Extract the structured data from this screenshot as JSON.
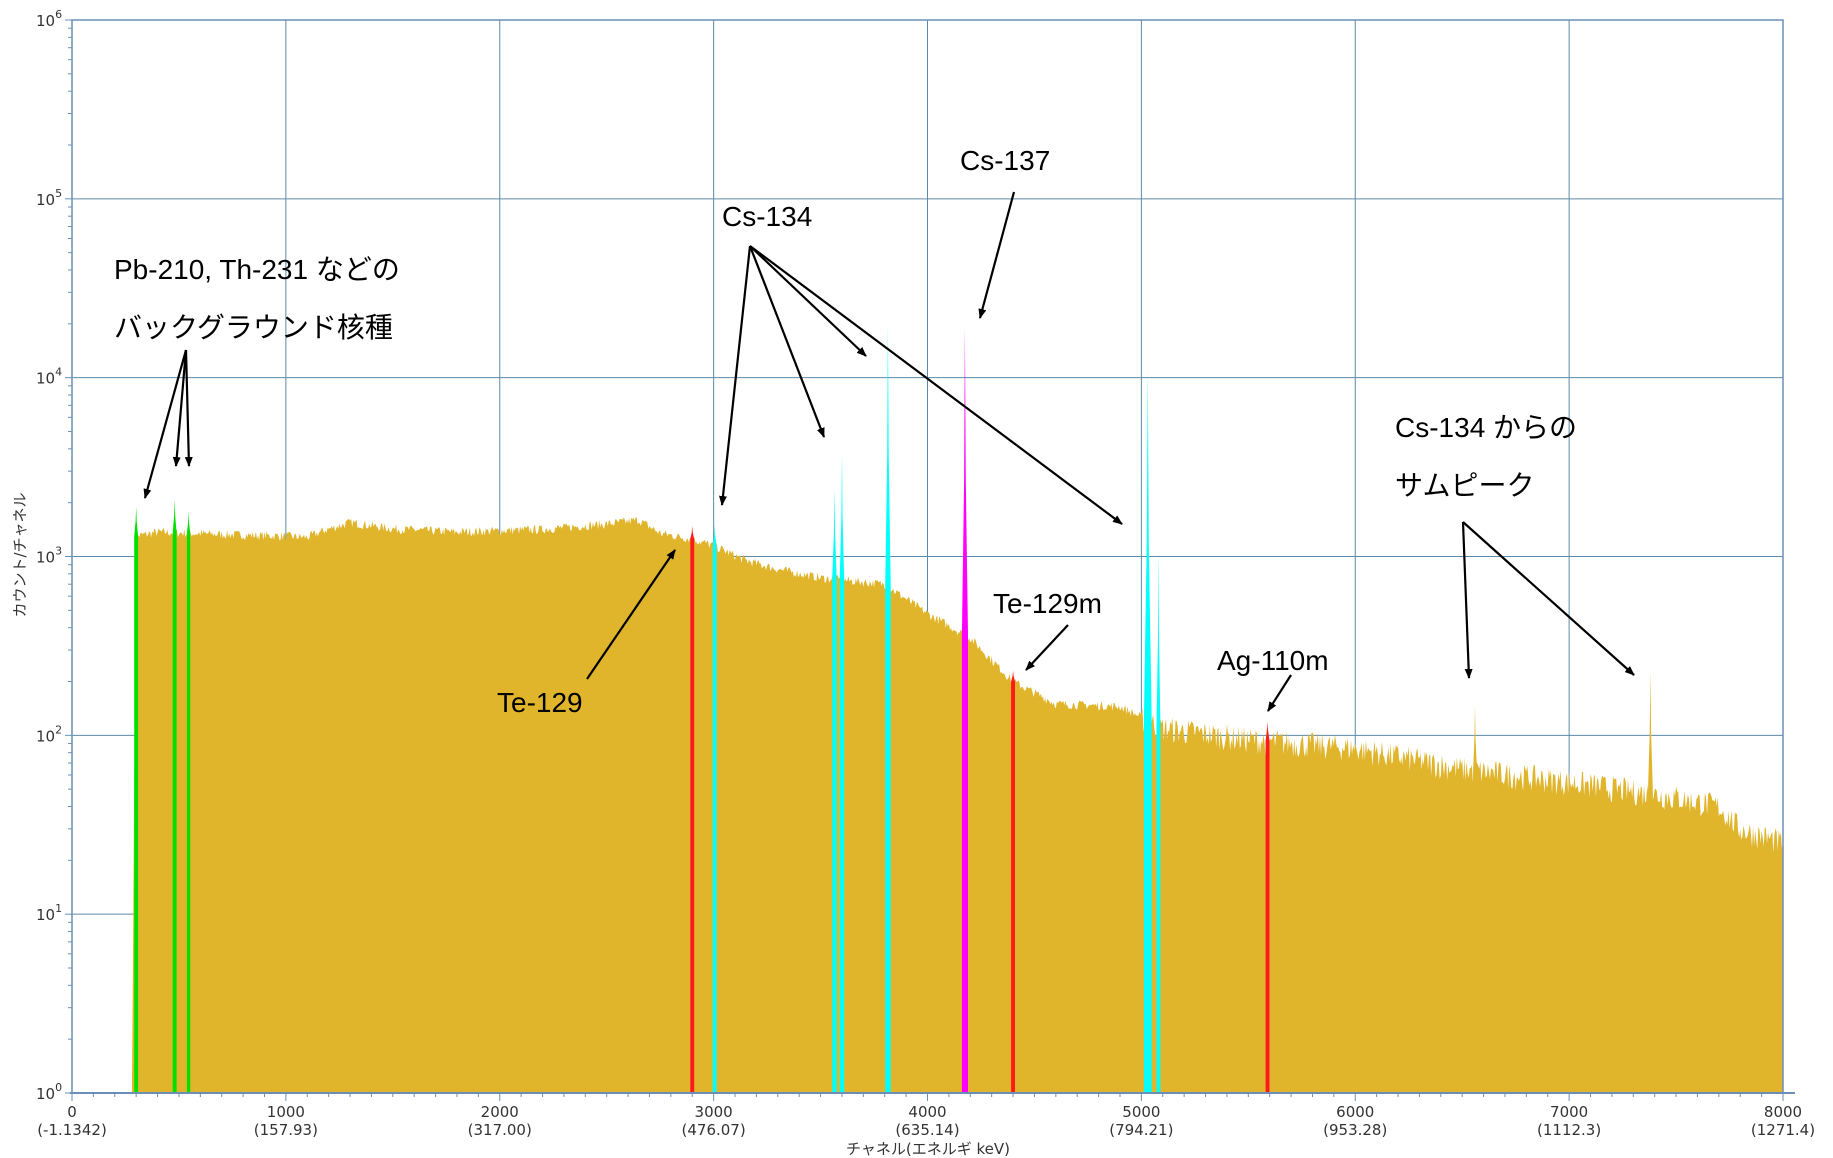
{
  "chart_data": {
    "type": "area",
    "title": "",
    "xlabel": "チャネル(エネルギ keV)",
    "ylabel": "カウント/チャネル",
    "x_scale": "linear",
    "y_scale": "log",
    "xlim": [
      0,
      8000
    ],
    "ylim": [
      1,
      1000000
    ],
    "grid": true,
    "x_ticks": [
      {
        "value": 0,
        "label": "0",
        "sublabel": "(-1.1342)"
      },
      {
        "value": 1000,
        "label": "1000",
        "sublabel": "(157.93)"
      },
      {
        "value": 2000,
        "label": "2000",
        "sublabel": "(317.00)"
      },
      {
        "value": 3000,
        "label": "3000",
        "sublabel": "(476.07)"
      },
      {
        "value": 4000,
        "label": "4000",
        "sublabel": "(635.14)"
      },
      {
        "value": 5000,
        "label": "5000",
        "sublabel": "(794.21)"
      },
      {
        "value": 6000,
        "label": "6000",
        "sublabel": "(953.28)"
      },
      {
        "value": 7000,
        "label": "7000",
        "sublabel": "(1112.3)"
      },
      {
        "value": 8000,
        "label": "8000",
        "sublabel": "(1271.4)"
      }
    ],
    "y_ticks": [
      {
        "value": 1,
        "base": "10",
        "exp": "0"
      },
      {
        "value": 10,
        "base": "10",
        "exp": "1"
      },
      {
        "value": 100,
        "base": "10",
        "exp": "2"
      },
      {
        "value": 1000,
        "base": "10",
        "exp": "3"
      },
      {
        "value": 10000,
        "base": "10",
        "exp": "4"
      },
      {
        "value": 100000,
        "base": "10",
        "exp": "5"
      },
      {
        "value": 1000000,
        "base": "10",
        "exp": "6"
      }
    ],
    "continuum": [
      [
        280,
        1
      ],
      [
        300,
        1300
      ],
      [
        400,
        1370
      ],
      [
        700,
        1330
      ],
      [
        1000,
        1300
      ],
      [
        1100,
        1280
      ],
      [
        1180,
        1400
      ],
      [
        1300,
        1550
      ],
      [
        1500,
        1430
      ],
      [
        1800,
        1370
      ],
      [
        2200,
        1420
      ],
      [
        2500,
        1520
      ],
      [
        2650,
        1600
      ],
      [
        2750,
        1350
      ],
      [
        2900,
        1250
      ],
      [
        3000,
        1150
      ],
      [
        3150,
        950
      ],
      [
        3300,
        850
      ],
      [
        3500,
        760
      ],
      [
        3800,
        700
      ],
      [
        4000,
        480
      ],
      [
        4200,
        350
      ],
      [
        4400,
        200
      ],
      [
        4600,
        150
      ],
      [
        4900,
        145
      ],
      [
        5100,
        110
      ],
      [
        5500,
        95
      ],
      [
        6000,
        85
      ],
      [
        6500,
        65
      ],
      [
        7000,
        55
      ],
      [
        7500,
        45
      ],
      [
        7700,
        40
      ],
      [
        7800,
        30
      ],
      [
        8000,
        25
      ],
      [
        8000,
        1
      ]
    ],
    "peaks": [
      {
        "nuclide": "bkg",
        "channel": 300,
        "counts": 1900,
        "width": 14,
        "color": "#00e000"
      },
      {
        "nuclide": "bkg",
        "channel": 480,
        "counts": 2100,
        "width": 14,
        "color": "#00e000"
      },
      {
        "nuclide": "bkg",
        "channel": 545,
        "counts": 1800,
        "width": 12,
        "color": "#00e000"
      },
      {
        "nuclide": "Te-129",
        "channel": 2900,
        "counts": 1480,
        "width": 14,
        "color": "#ff1a1a"
      },
      {
        "nuclide": "Cs-134",
        "channel": 3005,
        "counts": 1500,
        "width": 14,
        "color": "#00ffff"
      },
      {
        "nuclide": "Cs-134",
        "channel": 3565,
        "counts": 2400,
        "width": 16,
        "color": "#00ffff"
      },
      {
        "nuclide": "Cs-134",
        "channel": 3600,
        "counts": 3800,
        "width": 16,
        "color": "#00ffff"
      },
      {
        "nuclide": "Cs-134",
        "channel": 3815,
        "counts": 20000,
        "width": 20,
        "color": "#00ffff"
      },
      {
        "nuclide": "Cs-137",
        "channel": 4175,
        "counts": 19000,
        "width": 22,
        "color": "#ff00ff"
      },
      {
        "nuclide": "Te-129m",
        "channel": 4400,
        "counts": 230,
        "width": 14,
        "color": "#ff1a1a"
      },
      {
        "nuclide": "Cs-134",
        "channel": 5030,
        "counts": 11000,
        "width": 28,
        "color": "#00ffff"
      },
      {
        "nuclide": "Cs-134",
        "channel": 5080,
        "counts": 1100,
        "width": 14,
        "color": "#00ffff"
      },
      {
        "nuclide": "Ag-110m",
        "channel": 5590,
        "counts": 120,
        "width": 14,
        "color": "#ff1a1a"
      },
      {
        "nuclide": "sum",
        "channel": 6560,
        "counts": 150,
        "width": 14,
        "color": "#e0b52c"
      },
      {
        "nuclide": "sum",
        "channel": 7380,
        "counts": 230,
        "width": 18,
        "color": "#e0b52c"
      }
    ],
    "annotations": [
      {
        "id": "bkg-line1",
        "text": "Pb-210, Th-231 などの"
      },
      {
        "id": "bkg-line2",
        "text": "バックグラウンド核種"
      },
      {
        "id": "cs134",
        "text": "Cs-134"
      },
      {
        "id": "cs137",
        "text": "Cs-137"
      },
      {
        "id": "te129",
        "text": "Te-129"
      },
      {
        "id": "te129m",
        "text": "Te-129m"
      },
      {
        "id": "ag110m",
        "text": "Ag-110m"
      },
      {
        "id": "sum-line1",
        "text": "Cs-134 からの"
      },
      {
        "id": "sum-line2",
        "text": "サムピーク"
      }
    ],
    "colors": {
      "continuum": "#e0b52c",
      "grid": "#5d8aa8",
      "axis": "#6b8fb8",
      "background_peak_nuclides": "#00e000",
      "cs134": "#00ffff",
      "cs137": "#ff00ff",
      "te_ag": "#ff1a1a"
    }
  }
}
